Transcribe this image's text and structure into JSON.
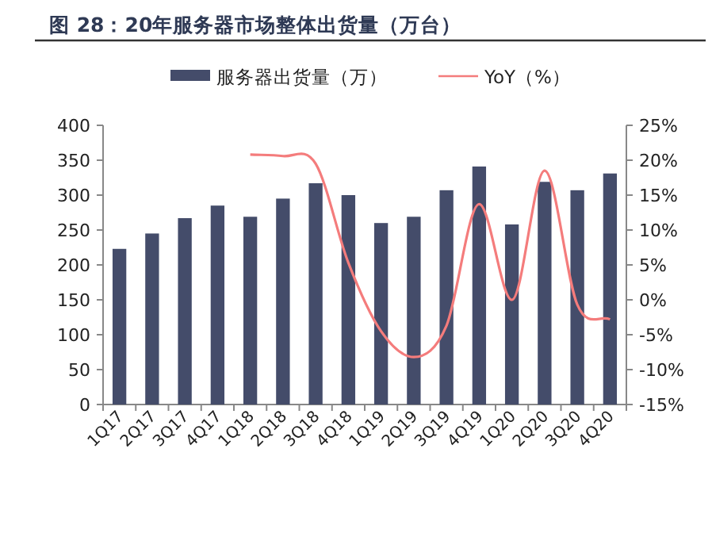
{
  "chart_data": {
    "type": "bar",
    "title": "图 28：20年服务器市场整体出货量（万台）",
    "categories": [
      "1Q17",
      "2Q17",
      "3Q17",
      "4Q17",
      "1Q18",
      "2Q18",
      "3Q18",
      "4Q18",
      "1Q19",
      "2Q19",
      "3Q19",
      "4Q19",
      "1Q20",
      "2Q20",
      "3Q20",
      "4Q20"
    ],
    "series": [
      {
        "name": "服务器出货量（万）",
        "color": "#444c6a",
        "values": [
          223,
          245,
          267,
          285,
          269,
          295,
          317,
          300,
          260,
          269,
          307,
          341,
          258,
          319,
          307,
          331
        ]
      },
      {
        "name": "YoY（%）",
        "type": "line",
        "axis": "y2",
        "color": "#f47c7c",
        "values": [
          null,
          null,
          null,
          null,
          20.8,
          20.6,
          19.5,
          5.3,
          -4.5,
          -8.2,
          -3.7,
          13.7,
          0.0,
          18.5,
          -0.7,
          -2.8
        ]
      }
    ],
    "ylim": [
      0,
      400
    ],
    "yticks": [
      0,
      50,
      100,
      150,
      200,
      250,
      300,
      350,
      400
    ],
    "y2lim": [
      -15,
      25
    ],
    "y2ticks": [
      {
        "value": -15,
        "label": "-15%"
      },
      {
        "value": -10,
        "label": "-10%"
      },
      {
        "value": -5,
        "label": "-5%"
      },
      {
        "value": 0,
        "label": "0%"
      },
      {
        "value": 5,
        "label": "5%"
      },
      {
        "value": 10,
        "label": "10%"
      },
      {
        "value": 15,
        "label": "15%"
      },
      {
        "value": 20,
        "label": "20%"
      },
      {
        "value": 25,
        "label": "25%"
      }
    ],
    "legend": "top"
  }
}
